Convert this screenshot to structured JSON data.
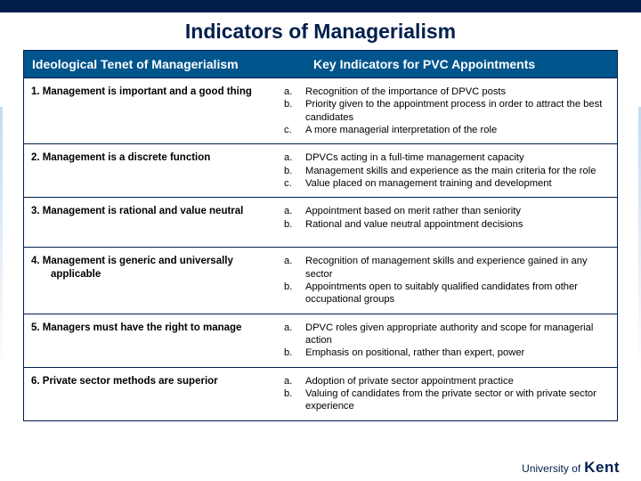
{
  "title": "Indicators of Managerialism",
  "columns": {
    "left": "Ideological Tenet of Managerialism",
    "right": "Key Indicators for PVC Appointments"
  },
  "rows": [
    {
      "tenet": "1. Management is important and a good thing",
      "indicators": [
        {
          "m": "a.",
          "t": "Recognition of the importance of DPVC posts"
        },
        {
          "m": "b.",
          "t": "Priority given to the appointment process in order to attract the best candidates"
        },
        {
          "m": "c.",
          "t": "A more managerial interpretation of the role"
        }
      ]
    },
    {
      "tenet": "2. Management is a discrete function",
      "indicators": [
        {
          "m": "a.",
          "t": "DPVCs acting in a full-time management capacity"
        },
        {
          "m": "b.",
          "t": "Management skills and experience as the main criteria for the role"
        },
        {
          "m": "c.",
          "t": "Value placed on management training and development"
        }
      ]
    },
    {
      "tenet": "3. Management is rational and value neutral",
      "indicators": [
        {
          "m": "a.",
          "t": "Appointment based on merit rather than seniority"
        },
        {
          "m": "b.",
          "t": "Rational and value neutral appointment decisions"
        }
      ]
    },
    {
      "tenet_main": "4. Management is generic and universally",
      "tenet_sub": "applicable",
      "indicators": [
        {
          "m": "a.",
          "t": "Recognition of management skills and experience gained in any sector"
        },
        {
          "m": "b.",
          "t": "Appointments open to suitably qualified candidates from other occupational groups"
        }
      ]
    },
    {
      "tenet": "5. Managers must have the right to manage",
      "indicators": [
        {
          "m": "a.",
          "t": "DPVC roles given appropriate authority and scope for managerial action"
        },
        {
          "m": "b.",
          "t": "Emphasis on positional, rather than expert, power"
        }
      ]
    },
    {
      "tenet": "6. Private sector methods are superior",
      "indicators": [
        {
          "m": "a.",
          "t": "Adoption of private sector appointment practice"
        },
        {
          "m": "b.",
          "t": "Valuing of candidates from the private sector or with private sector experience"
        }
      ]
    }
  ],
  "logo": {
    "uni": "University of",
    "name": "Kent"
  }
}
